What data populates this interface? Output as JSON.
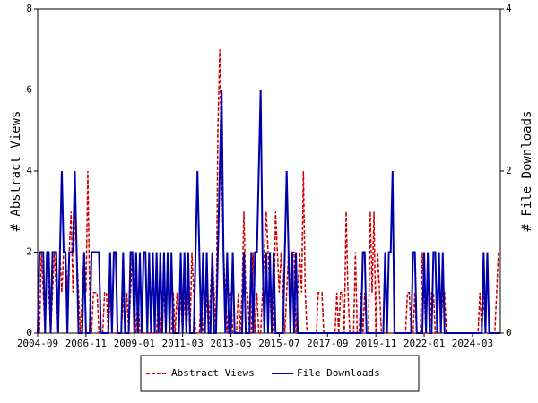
{
  "chart_data": {
    "type": "line",
    "x": [
      "2004-09",
      "2004-10",
      "2004-11",
      "2004-12",
      "2005-01",
      "2005-02",
      "2005-03",
      "2005-04",
      "2005-05",
      "2005-06",
      "2005-07",
      "2005-08",
      "2005-09",
      "2005-10",
      "2005-11",
      "2005-12",
      "2006-01",
      "2006-02",
      "2006-03",
      "2006-04",
      "2006-05",
      "2006-06",
      "2006-07",
      "2006-08",
      "2006-09",
      "2006-10",
      "2006-11",
      "2006-12",
      "2007-01",
      "2007-02",
      "2007-03",
      "2007-04",
      "2007-05",
      "2007-06",
      "2007-07",
      "2007-08",
      "2007-09",
      "2007-10",
      "2007-11",
      "2007-12",
      "2008-01",
      "2008-02",
      "2008-03",
      "2008-04",
      "2008-05",
      "2008-06",
      "2008-07",
      "2008-08",
      "2008-09",
      "2008-10",
      "2008-11",
      "2008-12",
      "2009-01",
      "2009-02",
      "2009-03",
      "2009-04",
      "2009-05",
      "2009-06",
      "2009-07",
      "2009-08",
      "2009-09",
      "2009-10",
      "2009-11",
      "2009-12",
      "2010-01",
      "2010-02",
      "2010-03",
      "2010-04",
      "2010-05",
      "2010-06",
      "2010-07",
      "2010-08",
      "2010-09",
      "2010-10",
      "2010-11",
      "2010-12",
      "2011-01",
      "2011-02",
      "2011-03",
      "2011-04",
      "2011-05",
      "2011-06",
      "2011-07",
      "2011-08",
      "2011-09",
      "2011-10",
      "2011-11",
      "2011-12",
      "2012-01",
      "2012-02",
      "2012-03",
      "2012-04",
      "2012-05",
      "2012-06",
      "2012-07",
      "2012-08",
      "2012-09",
      "2012-10",
      "2012-11",
      "2012-12",
      "2013-01",
      "2013-02",
      "2013-03",
      "2013-04",
      "2013-05",
      "2013-06",
      "2013-07",
      "2013-08",
      "2013-09",
      "2013-10",
      "2013-11",
      "2013-12",
      "2014-01",
      "2014-02",
      "2014-03",
      "2014-04",
      "2014-05",
      "2014-06",
      "2014-07",
      "2014-08",
      "2014-09",
      "2014-10",
      "2014-11",
      "2014-12",
      "2015-01",
      "2015-02",
      "2015-03",
      "2015-04",
      "2015-05",
      "2015-06",
      "2015-07",
      "2015-08",
      "2015-09",
      "2015-10",
      "2015-11",
      "2015-12",
      "2016-01",
      "2016-02",
      "2016-03",
      "2016-04",
      "2016-05",
      "2016-06",
      "2016-07",
      "2016-08",
      "2016-09",
      "2016-10",
      "2016-11",
      "2016-12",
      "2017-01",
      "2017-02",
      "2017-03",
      "2017-04",
      "2017-05",
      "2017-06",
      "2017-07",
      "2017-08",
      "2017-09",
      "2017-10",
      "2017-11",
      "2017-12",
      "2018-01",
      "2018-02",
      "2018-03",
      "2018-04",
      "2018-05",
      "2018-06",
      "2018-07",
      "2018-08",
      "2018-09",
      "2018-10",
      "2018-11",
      "2018-12",
      "2019-01",
      "2019-02",
      "2019-03",
      "2019-04",
      "2019-05",
      "2019-06",
      "2019-07",
      "2019-08",
      "2019-09",
      "2019-10",
      "2019-11",
      "2019-12",
      "2020-01",
      "2020-02",
      "2020-03",
      "2020-04",
      "2020-05",
      "2020-06",
      "2020-07",
      "2020-08",
      "2020-09",
      "2020-10",
      "2020-11",
      "2020-12",
      "2021-01",
      "2021-02",
      "2021-03",
      "2021-04",
      "2021-05",
      "2021-06",
      "2021-07",
      "2021-08",
      "2021-09",
      "2021-10",
      "2021-11",
      "2021-12",
      "2022-01",
      "2022-02",
      "2022-03",
      "2022-04",
      "2022-05",
      "2022-06",
      "2022-07",
      "2022-08",
      "2022-09",
      "2022-10",
      "2022-11",
      "2022-12",
      "2023-01",
      "2023-02",
      "2023-03",
      "2023-04",
      "2023-05",
      "2023-06",
      "2023-07",
      "2023-08",
      "2023-09",
      "2023-10",
      "2023-11",
      "2023-12",
      "2024-01",
      "2024-02",
      "2024-03",
      "2024-04",
      "2024-05",
      "2024-06",
      "2024-07",
      "2024-08",
      "2024-09",
      "2024-10",
      "2024-11",
      "2024-12",
      "2025-01",
      "2025-02",
      "2025-03",
      "2025-04",
      "2025-05",
      "2025-06"
    ],
    "series": [
      {
        "name": "Abstract Views",
        "color": "#cc0000",
        "dash": true,
        "values": [
          1,
          0,
          2,
          1,
          0,
          2,
          1,
          0,
          1,
          2,
          1,
          0,
          2,
          1,
          2,
          2,
          1,
          2,
          3,
          1,
          3,
          2,
          1,
          0,
          1,
          2,
          1,
          4,
          1,
          0,
          1,
          1,
          1,
          0,
          0,
          0,
          1,
          1,
          0,
          1,
          0,
          0,
          0,
          0,
          0,
          0,
          1,
          0,
          1,
          0,
          1,
          2,
          1,
          0,
          1,
          0,
          0,
          0,
          0,
          0,
          0,
          0,
          0,
          0,
          0,
          1,
          0,
          1,
          1,
          0,
          0,
          0,
          0,
          1,
          0,
          1,
          0,
          1,
          0,
          1,
          0,
          1,
          0,
          2,
          1,
          0,
          0,
          0,
          1,
          0,
          0,
          1,
          0,
          1,
          2,
          1,
          0,
          5,
          7,
          4,
          2,
          1,
          0,
          1,
          1,
          0,
          0,
          0,
          1,
          0,
          1,
          3,
          1,
          1,
          0,
          0,
          2,
          0,
          1,
          0,
          0,
          1,
          2,
          3,
          2,
          1,
          0,
          0,
          3,
          2,
          1,
          2,
          1,
          0,
          1,
          2,
          1,
          2,
          2,
          0,
          1,
          2,
          1,
          4,
          1,
          0,
          0,
          0,
          0,
          0,
          0,
          1,
          1,
          1,
          0,
          0,
          0,
          0,
          0,
          0,
          0,
          1,
          0,
          1,
          1,
          0,
          3,
          1,
          0,
          0,
          0,
          2,
          0,
          0,
          1,
          0,
          1,
          0,
          0,
          3,
          1,
          3,
          0,
          2,
          1,
          0,
          0,
          0,
          0,
          0,
          0,
          0,
          0,
          0,
          0,
          0,
          0,
          0,
          0,
          1,
          1,
          0,
          0,
          1,
          0,
          0,
          0,
          2,
          1,
          0,
          0,
          0,
          1,
          1,
          0,
          0,
          0,
          0,
          1,
          1,
          0,
          0,
          0,
          0,
          0,
          0,
          0,
          0,
          0,
          0,
          0,
          0,
          0,
          0,
          0,
          0,
          0,
          0,
          1,
          0,
          1,
          0,
          0,
          0,
          0,
          0,
          0,
          1,
          2,
          2
        ]
      },
      {
        "name": "File Downloads",
        "color": "#0000aa",
        "axis": "y2",
        "values": [
          0,
          1,
          1,
          1,
          0,
          1,
          1,
          0,
          1,
          1,
          1,
          0,
          1,
          2,
          1,
          1,
          0,
          1,
          1,
          1,
          2,
          1,
          0,
          0,
          0,
          1,
          0,
          0,
          0,
          1,
          1,
          1,
          1,
          1,
          0,
          0,
          0,
          0,
          0,
          1,
          0,
          1,
          1,
          0,
          0,
          0,
          1,
          0,
          0,
          0,
          1,
          1,
          0,
          1,
          0,
          1,
          0,
          1,
          1,
          0,
          1,
          0,
          1,
          0,
          1,
          0,
          1,
          0,
          1,
          0,
          1,
          0,
          1,
          0,
          0,
          0,
          0,
          1,
          0,
          1,
          0,
          1,
          0,
          0,
          0,
          1,
          2,
          1,
          0,
          1,
          0,
          1,
          0,
          0,
          1,
          0,
          0,
          1,
          2,
          3,
          1,
          0,
          1,
          0,
          0,
          1,
          0,
          0,
          0,
          0,
          0,
          1,
          0,
          0,
          0,
          1,
          0,
          1,
          1,
          2,
          3,
          1,
          0,
          1,
          0,
          1,
          0,
          1,
          0,
          0,
          0,
          0,
          0,
          1,
          2,
          1,
          0,
          1,
          0,
          1,
          0,
          0,
          0,
          0,
          0,
          0,
          0,
          0,
          0,
          0,
          0,
          0,
          0,
          0,
          0,
          0,
          0,
          0,
          0,
          0,
          0,
          0,
          0,
          0,
          0,
          0,
          0,
          0,
          0,
          0,
          0,
          0,
          0,
          0,
          0,
          1,
          1,
          0,
          0,
          0,
          0,
          0,
          0,
          0,
          0,
          0,
          0,
          1,
          0,
          1,
          1,
          2,
          0,
          0,
          0,
          0,
          0,
          0,
          0,
          0,
          0,
          0,
          1,
          1,
          0,
          0,
          0,
          0,
          1,
          0,
          1,
          0,
          0,
          1,
          1,
          0,
          1,
          0,
          1,
          0,
          0,
          0,
          0,
          0,
          0,
          0,
          0,
          0,
          0,
          0,
          0,
          0,
          0,
          0,
          0,
          0,
          0,
          0,
          0,
          0,
          1,
          0,
          1,
          0,
          0,
          0,
          0,
          0,
          0,
          0
        ]
      }
    ],
    "ylabel": "# Abstract Views",
    "y2label": "# File Downloads",
    "ylim": [
      0,
      8
    ],
    "yticks": [
      0,
      2,
      4,
      6,
      8
    ],
    "y2lim": [
      0,
      4
    ],
    "y2ticks": [
      0,
      2,
      4
    ],
    "xticks": [
      "2004-09",
      "2006-11",
      "2009-01",
      "2011-03",
      "2013-05",
      "2015-07",
      "2017-09",
      "2019-11",
      "2022-01",
      "2024-03"
    ],
    "legend": "bottom"
  }
}
